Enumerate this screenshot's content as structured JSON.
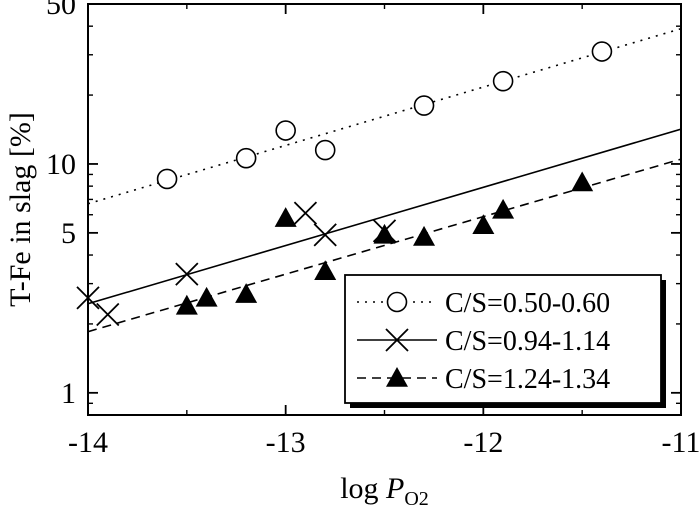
{
  "chart_data": {
    "type": "scatter",
    "title": "",
    "xlabel": "log P",
    "xlabel_subscript": "O2",
    "ylabel": "T-Fe in slag [%]",
    "xlim": [
      -14,
      -11
    ],
    "ylim": [
      0.8,
      50
    ],
    "yscale": "log",
    "grid": false,
    "legend_position": "bottom-right",
    "x_ticks": [
      -14,
      -13,
      -12,
      -11
    ],
    "x_tick_labels": [
      "-14",
      "-13",
      "-12",
      "-11"
    ],
    "y_ticks": [
      1,
      5,
      10,
      50
    ],
    "y_tick_labels": [
      "1",
      "5",
      "10",
      "50"
    ],
    "series": [
      {
        "name": "C/S=0.50-0.60",
        "marker": "open-circle",
        "line_style": "dotted",
        "x": [
          -13.6,
          -13.2,
          -13.0,
          -12.8,
          -12.3,
          -11.9,
          -11.4
        ],
        "y": [
          8.6,
          10.6,
          14.0,
          11.5,
          18.0,
          23.0,
          31.0
        ],
        "fit_line": {
          "x": [
            -14,
            -11
          ],
          "y": [
            6.7,
            39
          ]
        }
      },
      {
        "name": "C/S=0.94-1.14",
        "marker": "cross",
        "line_style": "solid",
        "x": [
          -14.0,
          -13.9,
          -13.5,
          -12.9,
          -12.8,
          -12.5
        ],
        "y": [
          2.6,
          2.2,
          3.3,
          6.1,
          4.9,
          5.1
        ],
        "fit_line": {
          "x": [
            -14,
            -11
          ],
          "y": [
            2.45,
            14.2
          ]
        }
      },
      {
        "name": "C/S=1.24-1.34",
        "marker": "filled-triangle",
        "line_style": "dashed",
        "x": [
          -13.5,
          -13.4,
          -13.2,
          -13.0,
          -12.8,
          -12.5,
          -12.3,
          -12.0,
          -11.9,
          -11.5
        ],
        "y": [
          2.4,
          2.6,
          2.7,
          5.8,
          3.4,
          4.9,
          4.8,
          5.4,
          6.3,
          8.3
        ],
        "fit_line": {
          "x": [
            -14,
            -11
          ],
          "y": [
            1.85,
            10.5
          ]
        }
      }
    ]
  }
}
